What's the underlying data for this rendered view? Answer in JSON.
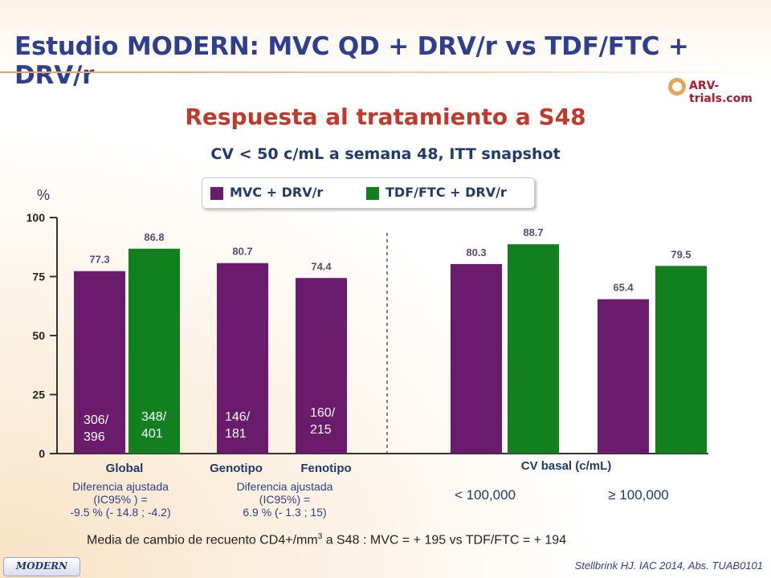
{
  "header": {
    "title": "Estudio MODERN: MVC QD + DRV/r vs TDF/FTC + DRV/r",
    "logo_text": "ARV-trials.com"
  },
  "subtitle": "Respuesta al tratamiento a S48",
  "subtitle2": "CV < 50 c/mL a semana 48, ITT snapshot",
  "legend": [
    {
      "label": "MVC + DRV/r",
      "color": "#6b1b6b"
    },
    {
      "label": "TDF/FTC + DRV/r",
      "color": "#12801f"
    }
  ],
  "chart_data": {
    "type": "bar",
    "ylabel": "%",
    "ylim": [
      0,
      100
    ],
    "yticks": [
      "0",
      "25",
      "50",
      "75",
      "100"
    ],
    "colors": {
      "mvc": "#6b1b6b",
      "tdf": "#12801f"
    },
    "bars": [
      {
        "group": "Global",
        "series": "MVC + DRV/r",
        "value": 77.3,
        "label": "77.3",
        "count": "306/\n396"
      },
      {
        "group": "Global",
        "series": "TDF/FTC + DRV/r",
        "value": 86.8,
        "label": "86.8",
        "count": "348/\n401"
      },
      {
        "group": "Genotipo",
        "series": "MVC + DRV/r",
        "value": 80.7,
        "label": "80.7",
        "count": "146/\n181"
      },
      {
        "group": "Fenotipo",
        "series": "MVC + DRV/r",
        "value": 74.4,
        "label": "74.4",
        "count": "160/\n215"
      },
      {
        "group": "< 100,000",
        "series": "MVC + DRV/r",
        "value": 80.3,
        "label": "80.3",
        "count": ""
      },
      {
        "group": "< 100,000",
        "series": "TDF/FTC + DRV/r",
        "value": 88.7,
        "label": "88.7",
        "count": ""
      },
      {
        "group": "≥ 100,000",
        "series": "MVC + DRV/r",
        "value": 65.4,
        "label": "65.4",
        "count": ""
      },
      {
        "group": "≥ 100,000",
        "series": "TDF/FTC + DRV/r",
        "value": 79.5,
        "label": "79.5",
        "count": ""
      }
    ],
    "category_labels": [
      "Global",
      "Genotipo",
      "Fenotipo",
      "CV basal (c/mL)"
    ],
    "sub_labels": [
      "< 100,000",
      "≥ 100,000"
    ]
  },
  "notes": {
    "global": "Diferencia ajustada\n(IC95% ) =\n-9.5 % (- 14.8 ; -4.2)",
    "genotipo": "Diferencia ajustada\n(IC95%) =\n6.9 % (- 1.3 ; 15)"
  },
  "footer": {
    "cd4_prefix": "Media de cambio de recuento CD4+/mm",
    "cd4_sup": "3",
    "cd4_suffix": " a S48 : MVC = + 195 vs TDF/FTC = + 194",
    "badge": "MODERN",
    "reference": "Stellbrink HJ. IAC 2014, Abs. TUAB0101"
  }
}
